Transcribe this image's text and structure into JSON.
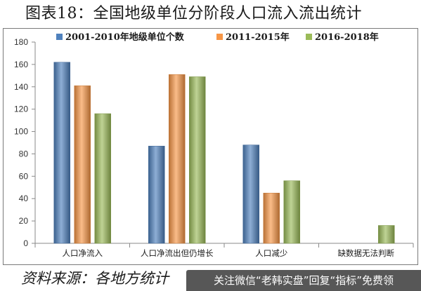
{
  "title": "图表18：全国地级单位分阶段人口流入流出统计",
  "source": "资料来源：各地方统计",
  "watermark": "关注微信“老韩实盘”回复“指标”免费领",
  "chart_data": {
    "type": "bar",
    "categories": [
      "人口净流入",
      "人口净流出但仍增长",
      "人口减少",
      "缺数据无法判断"
    ],
    "series": [
      {
        "name": "2001-2010年地级单位个数",
        "values": [
          162,
          87,
          88,
          0
        ],
        "color": "#4f81bd"
      },
      {
        "name": "2011-2015年",
        "values": [
          141,
          151,
          45,
          0
        ],
        "color": "#f79646"
      },
      {
        "name": "2016-2018年",
        "values": [
          116,
          149,
          56,
          16
        ],
        "color": "#9bbb59"
      }
    ],
    "ylim": [
      0,
      180
    ],
    "yticks": [
      0,
      20,
      40,
      60,
      80,
      100,
      120,
      140,
      160,
      180
    ],
    "legend_position": "top",
    "grid": false
  }
}
